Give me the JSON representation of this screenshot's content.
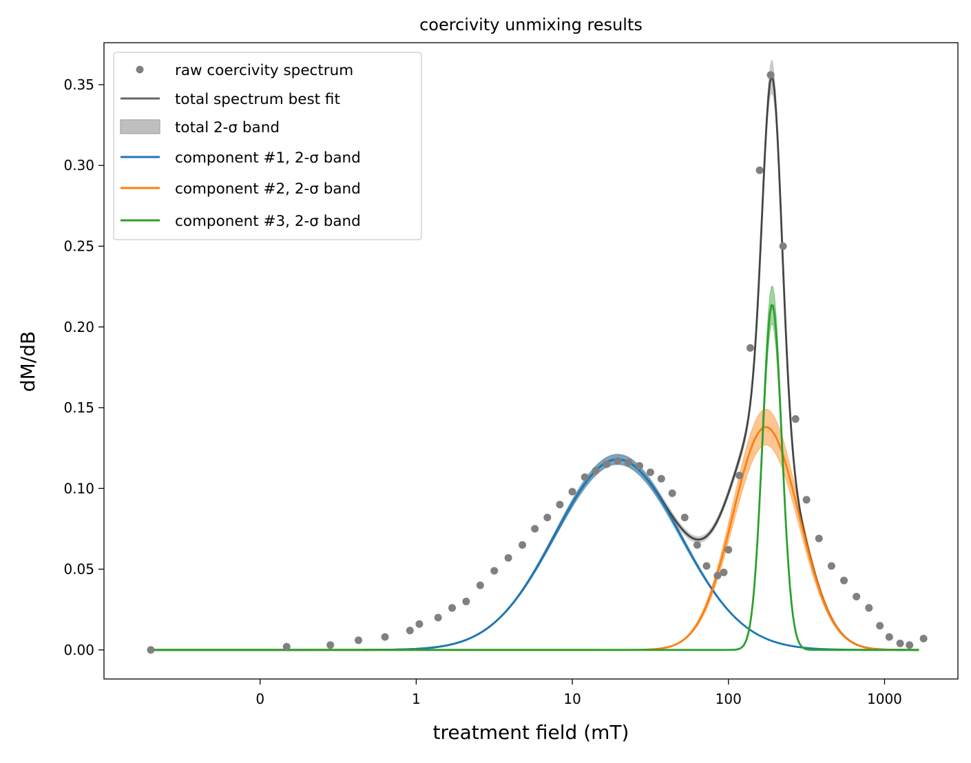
{
  "chart_data": {
    "type": "line",
    "title": "coercivity unmixing results",
    "xlabel": "treatment field (mT)",
    "ylabel": "dM/dB",
    "x_scale": "log10",
    "xlim_log10": [
      -2.0,
      3.47
    ],
    "ylim": [
      -0.018,
      0.376
    ],
    "x_tick_values_log10": [
      -1,
      0,
      1,
      2,
      3
    ],
    "x_tick_labels": [
      "0",
      "1",
      "10",
      "100",
      "1000"
    ],
    "y_ticks": [
      0.0,
      0.05,
      0.1,
      0.15,
      0.2,
      0.25,
      0.3,
      0.35
    ],
    "y_tick_labels": [
      "0.00",
      "0.05",
      "0.10",
      "0.15",
      "0.20",
      "0.25",
      "0.30",
      "0.35"
    ],
    "grid": false,
    "legend_position": "upper-left",
    "legend": [
      {
        "label": "raw coercivity spectrum",
        "style": "marker"
      },
      {
        "label": "total spectrum best fit",
        "style": "line"
      },
      {
        "label": "total 2-σ band",
        "style": "patch"
      },
      {
        "label": "component #1, 2-σ band",
        "style": "line"
      },
      {
        "label": "component #2, 2-σ band",
        "style": "line"
      },
      {
        "label": "component #3, 2-σ band",
        "style": "line"
      }
    ],
    "colors": {
      "raw": "#808080",
      "total": "#444444",
      "total_band": "#bfbfbf",
      "component1": "#1f77b4",
      "component2": "#ff7f0e",
      "component3": "#2ca02c"
    },
    "raw_points_log10x": [
      [
        -1.7,
        0.0
      ],
      [
        -0.83,
        0.002
      ],
      [
        -0.55,
        0.003
      ],
      [
        -0.37,
        0.006
      ],
      [
        -0.2,
        0.008
      ],
      [
        -0.04,
        0.012
      ],
      [
        0.02,
        0.016
      ],
      [
        0.14,
        0.02
      ],
      [
        0.23,
        0.026
      ],
      [
        0.32,
        0.03
      ],
      [
        0.41,
        0.04
      ],
      [
        0.5,
        0.049
      ],
      [
        0.59,
        0.057
      ],
      [
        0.68,
        0.065
      ],
      [
        0.76,
        0.075
      ],
      [
        0.84,
        0.082
      ],
      [
        0.92,
        0.09
      ],
      [
        1.0,
        0.098
      ],
      [
        1.08,
        0.107
      ],
      [
        1.15,
        0.111
      ],
      [
        1.22,
        0.115
      ],
      [
        1.29,
        0.117
      ],
      [
        1.36,
        0.116
      ],
      [
        1.43,
        0.114
      ],
      [
        1.5,
        0.11
      ],
      [
        1.57,
        0.106
      ],
      [
        1.64,
        0.097
      ],
      [
        1.72,
        0.082
      ],
      [
        1.8,
        0.065
      ],
      [
        1.86,
        0.052
      ],
      [
        1.93,
        0.046
      ],
      [
        1.97,
        0.048
      ],
      [
        2.0,
        0.062
      ],
      [
        2.07,
        0.108
      ],
      [
        2.14,
        0.187
      ],
      [
        2.2,
        0.297
      ],
      [
        2.27,
        0.356
      ],
      [
        2.35,
        0.25
      ],
      [
        2.43,
        0.143
      ],
      [
        2.5,
        0.093
      ],
      [
        2.58,
        0.069
      ],
      [
        2.66,
        0.052
      ],
      [
        2.74,
        0.043
      ],
      [
        2.82,
        0.033
      ],
      [
        2.9,
        0.026
      ],
      [
        2.97,
        0.015
      ],
      [
        3.03,
        0.008
      ],
      [
        3.1,
        0.004
      ],
      [
        3.16,
        0.003
      ],
      [
        3.25,
        0.007
      ]
    ],
    "components": [
      {
        "mu_log10": 1.29,
        "sigma_log10": 0.4,
        "amplitude": 0.118,
        "band": 0.002
      },
      {
        "mu_log10": 2.24,
        "sigma_log10": 0.212,
        "amplitude": 0.138,
        "band": 0.011
      },
      {
        "mu_log10": 2.28,
        "sigma_log10": 0.062,
        "amplitude": 0.214,
        "band": 0.011
      }
    ],
    "fit_range_log10": [
      -1.7,
      3.22
    ]
  }
}
